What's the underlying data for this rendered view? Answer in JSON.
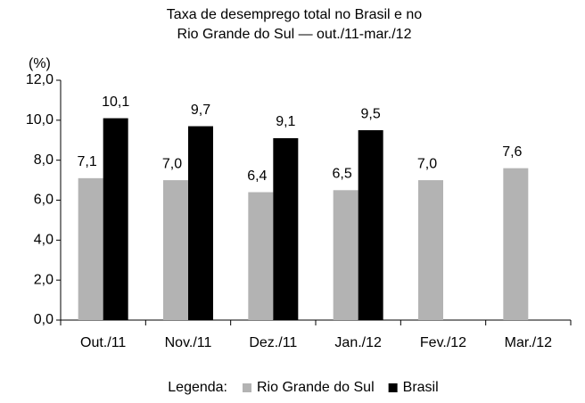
{
  "chart_data": {
    "type": "bar",
    "title": [
      "Taxa de desemprego total no Brasil e no",
      "Rio Grande do Sul — out./11-mar./12"
    ],
    "y_label": "(%)",
    "categories": [
      "Out./11",
      "Nov./11",
      "Dez./11",
      "Jan./12",
      "Fev./12",
      "Mar./12"
    ],
    "series": [
      {
        "name": "Rio Grande do Sul",
        "color": "#b3b3b3",
        "values": [
          7.1,
          7.0,
          6.4,
          6.5,
          7.0,
          7.6
        ],
        "value_labels": [
          "7,1",
          "7,0",
          "6,4",
          "6,5",
          "7,0",
          "7,6"
        ]
      },
      {
        "name": "Brasil",
        "color": "#000000",
        "values": [
          10.1,
          9.7,
          9.1,
          9.5,
          null,
          null
        ],
        "value_labels": [
          "10,1",
          "9,7",
          "9,1",
          "9,5",
          null,
          null
        ]
      }
    ],
    "ylim": [
      0,
      12
    ],
    "yticks": [
      {
        "value": 0,
        "label": "0,0"
      },
      {
        "value": 2,
        "label": "2,0"
      },
      {
        "value": 4,
        "label": "4,0"
      },
      {
        "value": 6,
        "label": "6,0"
      },
      {
        "value": 8,
        "label": "8,0"
      },
      {
        "value": 10,
        "label": "10,0"
      },
      {
        "value": 12,
        "label": "12,0"
      }
    ],
    "grid": false,
    "legend_title": "Legenda:",
    "legend_position": "bottom"
  }
}
